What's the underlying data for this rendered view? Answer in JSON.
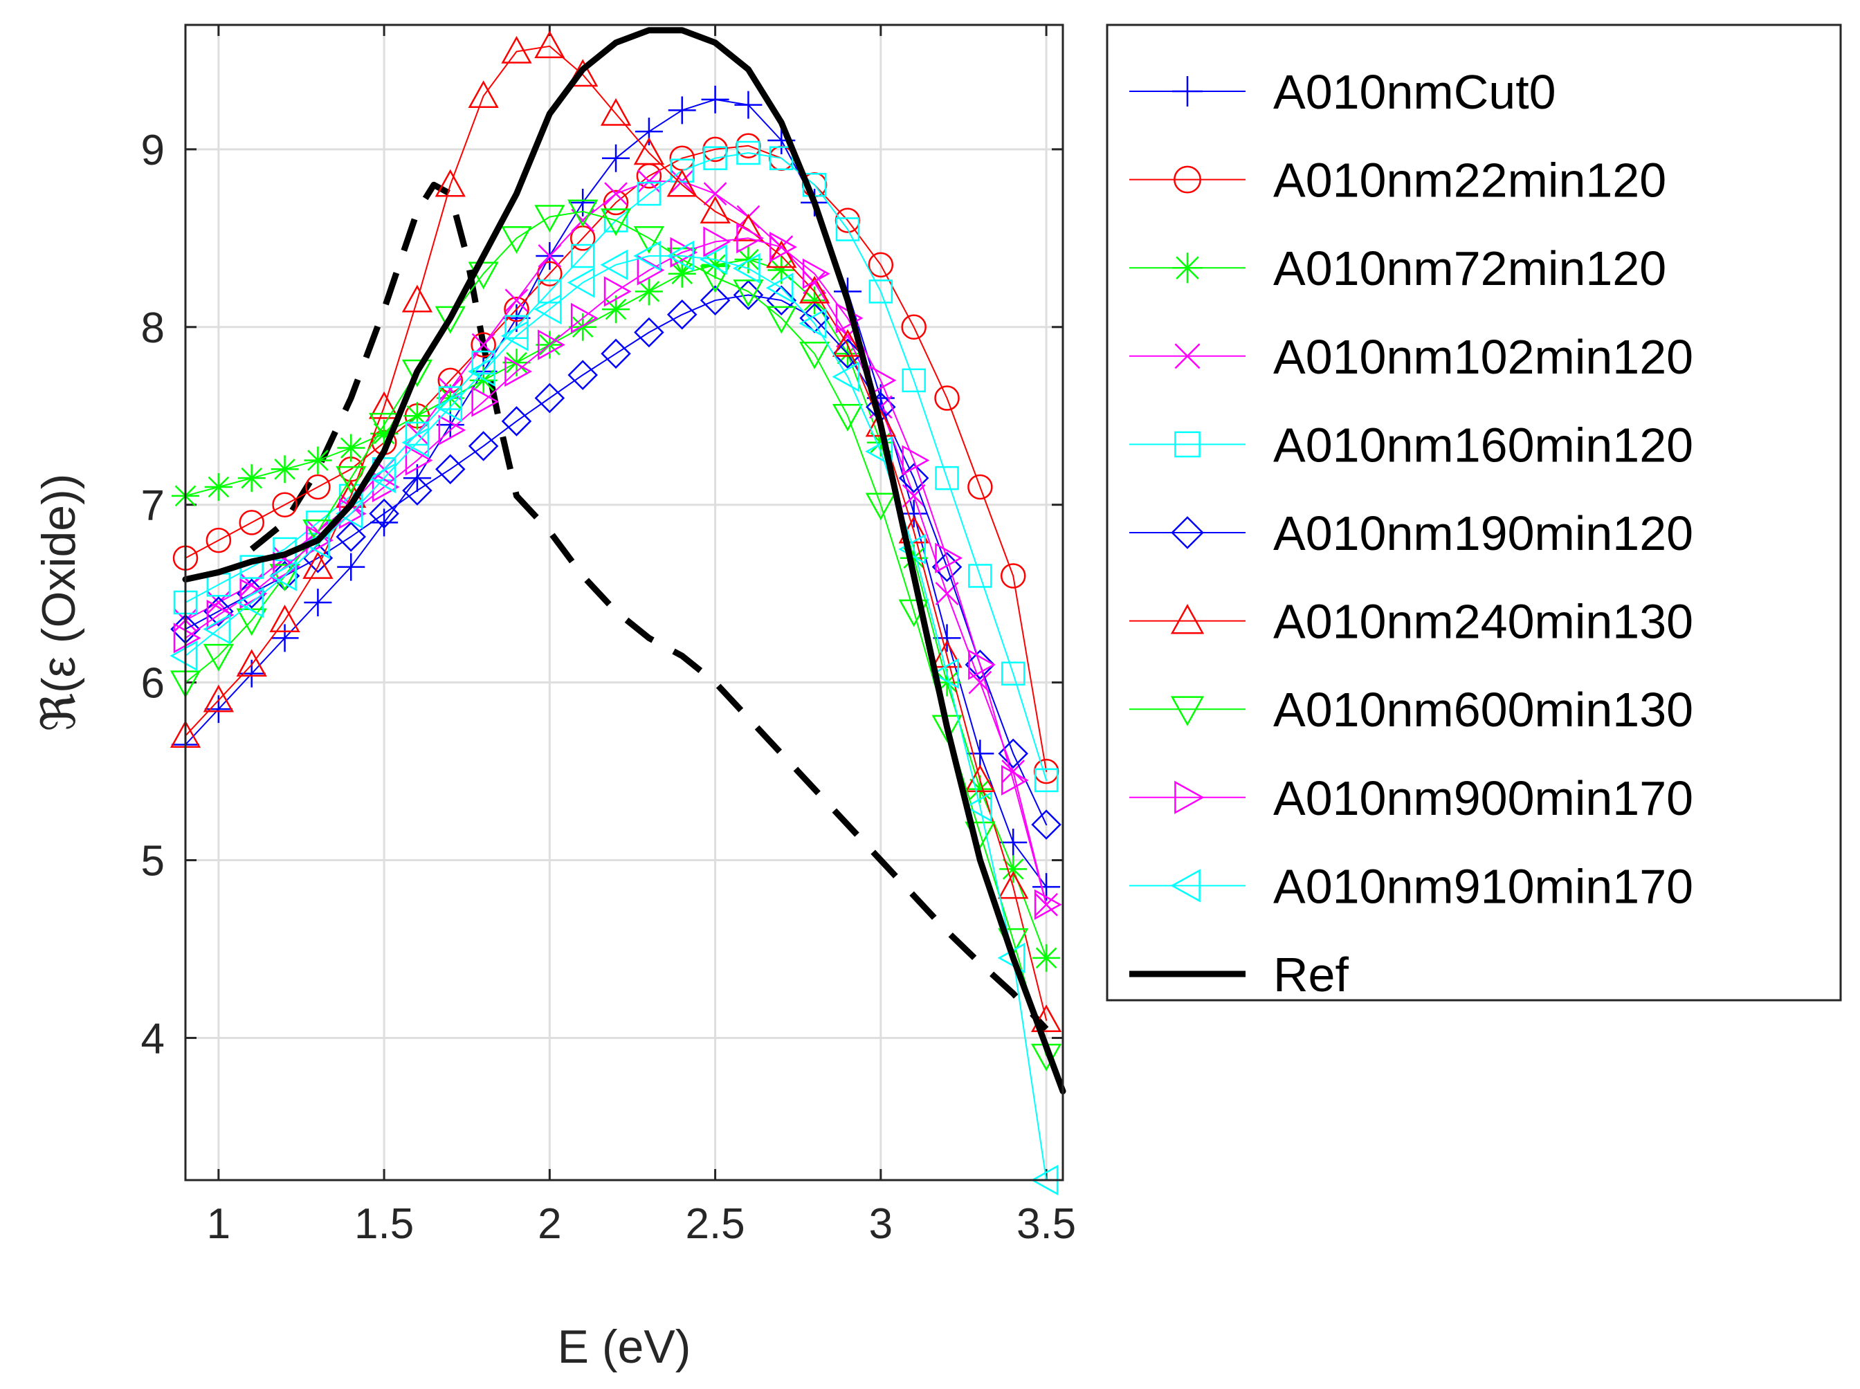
{
  "chart_data": {
    "type": "line",
    "title": "",
    "xlabel": "E (eV)",
    "ylabel": "ℜ(ε (Oxide))",
    "xlim": [
      0.9,
      3.55
    ],
    "ylim": [
      3.2,
      9.7
    ],
    "xticks": [
      1,
      1.5,
      2,
      2.5,
      3,
      3.5
    ],
    "yticks": [
      4,
      5,
      6,
      7,
      8,
      9
    ],
    "xtick_labels": [
      "1",
      "1.5",
      "2",
      "2.5",
      "3",
      "3.5"
    ],
    "ytick_labels": [
      "4",
      "5",
      "6",
      "7",
      "8",
      "9"
    ],
    "grid": true,
    "legend_position": "outside-right",
    "colors": {
      "blue": "#0000ff",
      "red": "#ff0000",
      "green": "#00ff00",
      "magenta": "#ff00ff",
      "cyan": "#00ffff",
      "black": "#000000"
    },
    "series": [
      {
        "name": "A010nmCut0",
        "color": "#0000ff",
        "marker": "plus",
        "linewidth": 2,
        "x": [
          0.9,
          1.0,
          1.1,
          1.2,
          1.3,
          1.4,
          1.5,
          1.6,
          1.7,
          1.8,
          1.9,
          2.0,
          2.1,
          2.2,
          2.3,
          2.4,
          2.5,
          2.6,
          2.7,
          2.8,
          2.9,
          3.0,
          3.1,
          3.2,
          3.3,
          3.4,
          3.5
        ],
        "y": [
          5.65,
          5.85,
          6.05,
          6.25,
          6.45,
          6.65,
          6.9,
          7.15,
          7.45,
          7.75,
          8.05,
          8.4,
          8.7,
          8.95,
          9.1,
          9.22,
          9.28,
          9.25,
          9.05,
          8.7,
          8.2,
          7.6,
          6.95,
          6.25,
          5.6,
          5.1,
          4.85
        ]
      },
      {
        "name": "A010nm22min120",
        "color": "#ff0000",
        "marker": "circle",
        "linewidth": 2,
        "x": [
          0.9,
          1.0,
          1.1,
          1.2,
          1.3,
          1.4,
          1.5,
          1.6,
          1.7,
          1.8,
          1.9,
          2.0,
          2.1,
          2.2,
          2.3,
          2.4,
          2.5,
          2.6,
          2.7,
          2.8,
          2.9,
          3.0,
          3.1,
          3.2,
          3.3,
          3.4,
          3.5
        ],
        "y": [
          6.7,
          6.8,
          6.9,
          7.0,
          7.1,
          7.2,
          7.35,
          7.5,
          7.7,
          7.9,
          8.1,
          8.3,
          8.5,
          8.7,
          8.85,
          8.95,
          9.0,
          9.02,
          8.95,
          8.8,
          8.6,
          8.35,
          8.0,
          7.6,
          7.1,
          6.6,
          5.5
        ]
      },
      {
        "name": "A010nm72min120",
        "color": "#00ff00",
        "marker": "asterisk",
        "linewidth": 2,
        "x": [
          0.9,
          1.0,
          1.1,
          1.2,
          1.3,
          1.4,
          1.5,
          1.6,
          1.7,
          1.8,
          1.9,
          2.0,
          2.1,
          2.2,
          2.3,
          2.4,
          2.5,
          2.6,
          2.7,
          2.8,
          2.9,
          3.0,
          3.1,
          3.2,
          3.3,
          3.4,
          3.5
        ],
        "y": [
          7.05,
          7.1,
          7.15,
          7.2,
          7.25,
          7.32,
          7.4,
          7.5,
          7.6,
          7.7,
          7.8,
          7.9,
          8.0,
          8.1,
          8.2,
          8.3,
          8.35,
          8.38,
          8.32,
          8.15,
          7.85,
          7.35,
          6.7,
          6.0,
          5.4,
          4.95,
          4.45
        ]
      },
      {
        "name": "A010nm102min120",
        "color": "#ff00ff",
        "marker": "cross",
        "linewidth": 2,
        "x": [
          0.9,
          1.0,
          1.1,
          1.2,
          1.3,
          1.4,
          1.5,
          1.6,
          1.7,
          1.8,
          1.9,
          2.0,
          2.1,
          2.2,
          2.3,
          2.4,
          2.5,
          2.6,
          2.7,
          2.8,
          2.9,
          3.0,
          3.1,
          3.2,
          3.3,
          3.4,
          3.5
        ],
        "y": [
          6.35,
          6.45,
          6.55,
          6.7,
          6.85,
          7.0,
          7.2,
          7.4,
          7.65,
          7.9,
          8.15,
          8.4,
          8.6,
          8.75,
          8.82,
          8.82,
          8.75,
          8.62,
          8.45,
          8.25,
          7.95,
          7.55,
          7.05,
          6.5,
          6.0,
          5.5,
          4.75
        ]
      },
      {
        "name": "A010nm160min120",
        "color": "#00ffff",
        "marker": "square",
        "linewidth": 2,
        "x": [
          0.9,
          1.0,
          1.1,
          1.2,
          1.3,
          1.4,
          1.5,
          1.6,
          1.7,
          1.8,
          1.9,
          2.0,
          2.1,
          2.2,
          2.3,
          2.4,
          2.5,
          2.6,
          2.7,
          2.8,
          2.9,
          3.0,
          3.1,
          3.2,
          3.3,
          3.4,
          3.5
        ],
        "y": [
          6.45,
          6.55,
          6.65,
          6.75,
          6.9,
          7.05,
          7.2,
          7.4,
          7.6,
          7.8,
          8.0,
          8.2,
          8.4,
          8.6,
          8.75,
          8.88,
          8.95,
          8.98,
          8.95,
          8.8,
          8.55,
          8.2,
          7.7,
          7.15,
          6.6,
          6.05,
          5.45
        ]
      },
      {
        "name": "A010nm190min120",
        "color": "#0000ff",
        "marker": "diamond",
        "linewidth": 2,
        "x": [
          0.9,
          1.0,
          1.1,
          1.2,
          1.3,
          1.4,
          1.5,
          1.6,
          1.7,
          1.8,
          1.9,
          2.0,
          2.1,
          2.2,
          2.3,
          2.4,
          2.5,
          2.6,
          2.7,
          2.8,
          2.9,
          3.0,
          3.1,
          3.2,
          3.3,
          3.4,
          3.5
        ],
        "y": [
          6.3,
          6.4,
          6.5,
          6.6,
          6.7,
          6.82,
          6.95,
          7.08,
          7.2,
          7.33,
          7.47,
          7.6,
          7.73,
          7.85,
          7.97,
          8.07,
          8.15,
          8.18,
          8.15,
          8.05,
          7.85,
          7.55,
          7.15,
          6.65,
          6.1,
          5.6,
          5.2
        ]
      },
      {
        "name": "A010nm240min130",
        "color": "#ff0000",
        "marker": "triangle-up",
        "linewidth": 2,
        "x": [
          0.9,
          1.0,
          1.1,
          1.2,
          1.3,
          1.4,
          1.5,
          1.6,
          1.7,
          1.8,
          1.9,
          2.0,
          2.1,
          2.2,
          2.3,
          2.4,
          2.5,
          2.6,
          2.7,
          2.8,
          2.9,
          3.0,
          3.1,
          3.2,
          3.3,
          3.4,
          3.5
        ],
        "y": [
          5.7,
          5.9,
          6.1,
          6.35,
          6.65,
          7.05,
          7.55,
          8.15,
          8.8,
          9.3,
          9.55,
          9.58,
          9.42,
          9.2,
          8.98,
          8.8,
          8.65,
          8.55,
          8.4,
          8.2,
          7.9,
          7.45,
          6.85,
          6.15,
          5.45,
          4.85,
          4.1
        ]
      },
      {
        "name": "A010nm600min130",
        "color": "#00ff00",
        "marker": "triangle-down",
        "linewidth": 2,
        "x": [
          0.9,
          1.0,
          1.1,
          1.2,
          1.3,
          1.4,
          1.5,
          1.6,
          1.7,
          1.8,
          1.9,
          2.0,
          2.1,
          2.2,
          2.3,
          2.4,
          2.5,
          2.6,
          2.7,
          2.8,
          2.9,
          3.0,
          3.1,
          3.2,
          3.3,
          3.4,
          3.5
        ],
        "y": [
          6.0,
          6.15,
          6.35,
          6.6,
          6.85,
          7.15,
          7.45,
          7.75,
          8.05,
          8.3,
          8.5,
          8.62,
          8.65,
          8.6,
          8.5,
          8.38,
          8.28,
          8.2,
          8.05,
          7.85,
          7.5,
          7.0,
          6.4,
          5.75,
          5.15,
          4.55,
          3.9
        ]
      },
      {
        "name": "A010nm900min170",
        "color": "#ff00ff",
        "marker": "triangle-right",
        "linewidth": 2,
        "x": [
          0.9,
          1.0,
          1.1,
          1.2,
          1.3,
          1.4,
          1.5,
          1.6,
          1.7,
          1.8,
          1.9,
          2.0,
          2.1,
          2.2,
          2.3,
          2.4,
          2.5,
          2.6,
          2.7,
          2.8,
          2.9,
          3.0,
          3.1,
          3.2,
          3.3,
          3.4,
          3.5
        ],
        "y": [
          6.25,
          6.38,
          6.5,
          6.65,
          6.8,
          6.95,
          7.1,
          7.25,
          7.42,
          7.58,
          7.75,
          7.9,
          8.05,
          8.2,
          8.32,
          8.42,
          8.48,
          8.5,
          8.45,
          8.3,
          8.05,
          7.7,
          7.25,
          6.7,
          6.1,
          5.45,
          4.75
        ]
      },
      {
        "name": "A010nm910min170",
        "color": "#00ffff",
        "marker": "triangle-left",
        "linewidth": 2,
        "x": [
          0.9,
          1.0,
          1.1,
          1.2,
          1.3,
          1.4,
          1.5,
          1.6,
          1.7,
          1.8,
          1.9,
          2.0,
          2.1,
          2.2,
          2.3,
          2.4,
          2.5,
          2.6,
          2.7,
          2.8,
          2.9,
          3.0,
          3.1,
          3.2,
          3.3,
          3.4,
          3.5
        ],
        "y": [
          6.15,
          6.3,
          6.45,
          6.6,
          6.78,
          6.95,
          7.15,
          7.35,
          7.55,
          7.75,
          7.95,
          8.1,
          8.25,
          8.35,
          8.4,
          8.4,
          8.38,
          8.33,
          8.22,
          8.02,
          7.72,
          7.3,
          6.75,
          6.05,
          5.3,
          4.45,
          3.2
        ]
      },
      {
        "name": "Ref",
        "color": "#000000",
        "marker": "none",
        "linewidth": 9,
        "x": [
          0.9,
          1.0,
          1.1,
          1.2,
          1.3,
          1.4,
          1.5,
          1.6,
          1.7,
          1.8,
          1.9,
          2.0,
          2.1,
          2.2,
          2.3,
          2.4,
          2.5,
          2.6,
          2.7,
          2.8,
          2.9,
          3.0,
          3.1,
          3.2,
          3.3,
          3.4,
          3.5,
          3.55
        ],
        "y": [
          6.58,
          6.62,
          6.68,
          6.72,
          6.8,
          7.0,
          7.3,
          7.75,
          8.05,
          8.4,
          8.75,
          9.2,
          9.45,
          9.6,
          9.67,
          9.67,
          9.6,
          9.45,
          9.15,
          8.7,
          8.15,
          7.45,
          6.6,
          5.75,
          5.0,
          4.45,
          3.95,
          3.7
        ]
      }
    ],
    "unlabeled_series": [
      {
        "color": "#000000",
        "style": "dashed",
        "linewidth": 9,
        "x": [
          1.1,
          1.2,
          1.3,
          1.4,
          1.5,
          1.6,
          1.65,
          1.7,
          1.75,
          1.8,
          1.85,
          1.9,
          2.0,
          2.1,
          2.2,
          2.3,
          2.4,
          2.5,
          2.6,
          2.7,
          2.8,
          2.9,
          3.0,
          3.1,
          3.2,
          3.3,
          3.4,
          3.5
        ],
        "y": [
          6.75,
          6.9,
          7.2,
          7.6,
          8.1,
          8.65,
          8.8,
          8.75,
          8.4,
          7.9,
          7.45,
          7.05,
          6.85,
          6.6,
          6.4,
          6.25,
          6.15,
          6.0,
          5.8,
          5.6,
          5.4,
          5.2,
          5.0,
          4.8,
          4.6,
          4.42,
          4.25,
          4.05
        ]
      }
    ]
  }
}
